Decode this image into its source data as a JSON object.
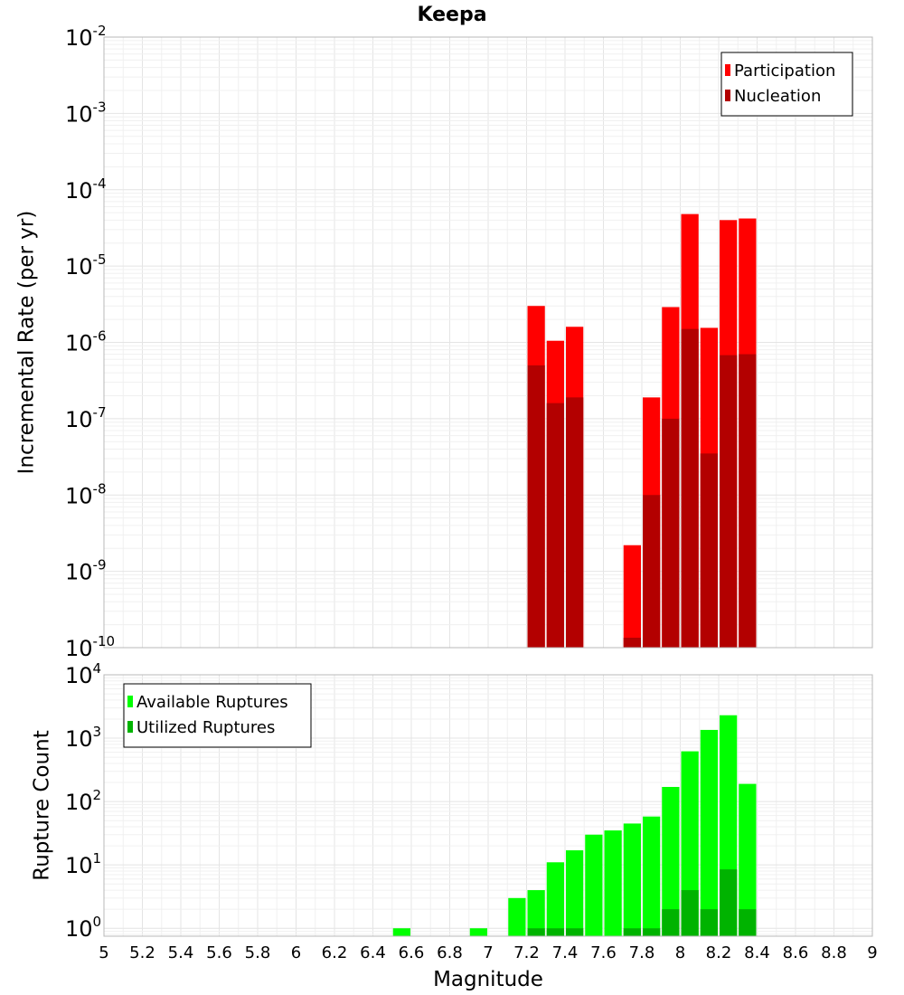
{
  "chart_data": [
    {
      "type": "bar",
      "title": "Keepa",
      "xlabel": "Magnitude",
      "ylabel": "Incremental Rate (per yr)",
      "yscale": "log",
      "ylim": [
        1e-10,
        0.01
      ],
      "xlim": [
        5,
        9
      ],
      "grid": true,
      "legend_position": "top-right",
      "y_tick_exponents": [
        "-10",
        "-9",
        "-8",
        "-7",
        "-6",
        "-5",
        "-4",
        "-3",
        "-2"
      ],
      "y_tick_base": "10",
      "bin_width": 0.1,
      "series": [
        {
          "name": "Participation",
          "color": "#ff0000",
          "points": [
            {
              "x": 7.25,
              "y": 3e-06
            },
            {
              "x": 7.35,
              "y": 1.05e-06
            },
            {
              "x": 7.45,
              "y": 1.6e-06
            },
            {
              "x": 7.75,
              "y": 2.2e-09
            },
            {
              "x": 7.85,
              "y": 1.9e-07
            },
            {
              "x": 7.95,
              "y": 2.9e-06
            },
            {
              "x": 8.05,
              "y": 4.8e-05
            },
            {
              "x": 8.15,
              "y": 1.55e-06
            },
            {
              "x": 8.25,
              "y": 4e-05
            },
            {
              "x": 8.35,
              "y": 4.2e-05
            }
          ]
        },
        {
          "name": "Nucleation",
          "color": "#b30000",
          "points": [
            {
              "x": 7.25,
              "y": 5e-07
            },
            {
              "x": 7.35,
              "y": 1.6e-07
            },
            {
              "x": 7.45,
              "y": 1.9e-07
            },
            {
              "x": 7.75,
              "y": 1.35e-10
            },
            {
              "x": 7.85,
              "y": 1e-08
            },
            {
              "x": 7.95,
              "y": 1e-07
            },
            {
              "x": 8.05,
              "y": 1.5e-06
            },
            {
              "x": 8.15,
              "y": 3.5e-08
            },
            {
              "x": 8.25,
              "y": 6.8e-07
            },
            {
              "x": 8.35,
              "y": 7e-07
            }
          ]
        }
      ]
    },
    {
      "type": "bar",
      "xlabel": "Magnitude",
      "ylabel": "Rupture Count",
      "yscale": "log",
      "ylim": [
        0.75,
        10000
      ],
      "xlim": [
        5,
        9
      ],
      "grid": true,
      "legend_position": "top-left",
      "y_tick_exponents": [
        "0",
        "1",
        "2",
        "3",
        "4"
      ],
      "y_tick_base": "10",
      "x_ticks": [
        "5",
        "5.2",
        "5.4",
        "5.6",
        "5.8",
        "6",
        "6.2",
        "6.4",
        "6.6",
        "6.8",
        "7",
        "7.2",
        "7.4",
        "7.6",
        "7.8",
        "8",
        "8.2",
        "8.4",
        "8.6",
        "8.8",
        "9"
      ],
      "bin_width": 0.1,
      "series": [
        {
          "name": "Available Ruptures",
          "color": "#00ff00",
          "points": [
            {
              "x": 6.55,
              "y": 1
            },
            {
              "x": 6.95,
              "y": 1
            },
            {
              "x": 7.15,
              "y": 3
            },
            {
              "x": 7.25,
              "y": 4
            },
            {
              "x": 7.35,
              "y": 11
            },
            {
              "x": 7.45,
              "y": 17
            },
            {
              "x": 7.55,
              "y": 30
            },
            {
              "x": 7.65,
              "y": 35
            },
            {
              "x": 7.75,
              "y": 45
            },
            {
              "x": 7.85,
              "y": 58
            },
            {
              "x": 7.95,
              "y": 170
            },
            {
              "x": 8.05,
              "y": 620
            },
            {
              "x": 8.15,
              "y": 1350
            },
            {
              "x": 8.25,
              "y": 2300
            },
            {
              "x": 8.35,
              "y": 190
            }
          ]
        },
        {
          "name": "Utilized Ruptures",
          "color": "#00b300",
          "points": [
            {
              "x": 7.25,
              "y": 1
            },
            {
              "x": 7.35,
              "y": 1
            },
            {
              "x": 7.45,
              "y": 1
            },
            {
              "x": 7.75,
              "y": 1
            },
            {
              "x": 7.85,
              "y": 1
            },
            {
              "x": 7.95,
              "y": 2
            },
            {
              "x": 8.05,
              "y": 4
            },
            {
              "x": 8.15,
              "y": 2
            },
            {
              "x": 8.25,
              "y": 8.5
            },
            {
              "x": 8.35,
              "y": 2
            }
          ]
        }
      ]
    }
  ]
}
